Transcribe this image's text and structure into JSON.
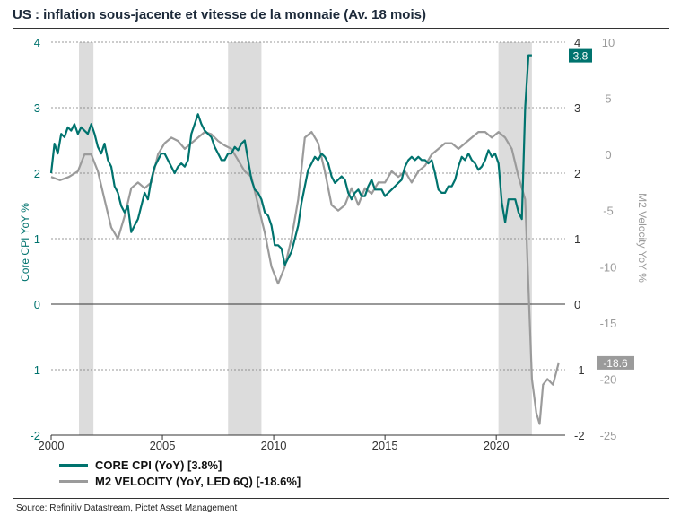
{
  "title": "US : inflation sous-jacente et vitesse de la monnaie (Av. 18 mois)",
  "source": "Source: Refinitiv Datastream, Pictet Asset Management",
  "colors": {
    "core_cpi": "#00736e",
    "m2_velocity": "#9b9b9b",
    "recession": "#dcdcdc",
    "grid": "#555555"
  },
  "legend": [
    {
      "label": "CORE CPI (YoY) [3.8%]",
      "color": "#00736e"
    },
    {
      "label": "M2 VELOCITY (YoY, LED 6Q) [-18.6%]",
      "color": "#9b9b9b"
    }
  ],
  "chart_data": {
    "type": "line",
    "xlim": [
      2000,
      2023.5
    ],
    "x_ticks": [
      2000,
      2005,
      2010,
      2015,
      2020
    ],
    "x_tick_labels": [
      "2000",
      "2005",
      "2010",
      "2015",
      "2020"
    ],
    "y_left": {
      "label": "Core CPI YoY %",
      "lim": [
        -2,
        4
      ],
      "ticks": [
        4,
        3,
        2,
        1,
        0,
        -1,
        -2
      ],
      "tick_labels": [
        "4",
        "3",
        "2",
        "1",
        "0",
        "-1",
        "-2"
      ]
    },
    "y_mid": {
      "lim": [
        -2,
        4
      ],
      "ticks": [
        4,
        3,
        2,
        1,
        0,
        -1,
        -2
      ],
      "tick_labels": [
        "4",
        "3",
        "2",
        "1",
        "0",
        "-1",
        "-2"
      ]
    },
    "y_right": {
      "label": "M2 Velocity YoY %",
      "lim": [
        -25,
        10
      ],
      "ticks": [
        10,
        5,
        0,
        -5,
        -10,
        -15,
        -20,
        -25
      ],
      "tick_labels": [
        "10",
        "5",
        "0",
        "-5",
        "-10",
        "-15",
        "-20",
        "-25"
      ]
    },
    "grid": true,
    "recessions": [
      [
        2001.25,
        2001.9
      ],
      [
        2007.95,
        2009.45
      ],
      [
        2020.1,
        2021.6
      ]
    ],
    "end_labels": [
      {
        "series": "core",
        "text": "3.8"
      },
      {
        "series": "m2",
        "text": "-18.6"
      }
    ],
    "series": [
      {
        "name": "CORE CPI (YoY) [3.8%]",
        "axis": "left",
        "x": [
          2000.0,
          2000.15,
          2000.3,
          2000.45,
          2000.6,
          2000.75,
          2000.9,
          2001.05,
          2001.2,
          2001.35,
          2001.5,
          2001.65,
          2001.8,
          2001.95,
          2002.1,
          2002.25,
          2002.4,
          2002.55,
          2002.7,
          2002.85,
          2003.0,
          2003.15,
          2003.3,
          2003.45,
          2003.6,
          2003.75,
          2003.9,
          2004.05,
          2004.2,
          2004.35,
          2004.5,
          2004.65,
          2004.8,
          2004.95,
          2005.1,
          2005.25,
          2005.4,
          2005.55,
          2005.7,
          2005.85,
          2006.0,
          2006.15,
          2006.3,
          2006.45,
          2006.6,
          2006.75,
          2006.9,
          2007.05,
          2007.2,
          2007.35,
          2007.5,
          2007.65,
          2007.8,
          2007.95,
          2008.1,
          2008.25,
          2008.4,
          2008.55,
          2008.7,
          2008.85,
          2009.0,
          2009.15,
          2009.3,
          2009.45,
          2009.6,
          2009.75,
          2009.9,
          2010.05,
          2010.2,
          2010.35,
          2010.5,
          2010.65,
          2010.8,
          2010.95,
          2011.1,
          2011.25,
          2011.4,
          2011.55,
          2011.7,
          2011.85,
          2012.0,
          2012.15,
          2012.3,
          2012.45,
          2012.6,
          2012.75,
          2012.9,
          2013.05,
          2013.2,
          2013.35,
          2013.5,
          2013.65,
          2013.8,
          2013.95,
          2014.1,
          2014.25,
          2014.4,
          2014.55,
          2014.7,
          2014.85,
          2015.0,
          2015.15,
          2015.3,
          2015.45,
          2015.6,
          2015.75,
          2015.9,
          2016.05,
          2016.2,
          2016.35,
          2016.5,
          2016.65,
          2016.8,
          2016.95,
          2017.1,
          2017.25,
          2017.4,
          2017.55,
          2017.7,
          2017.85,
          2018.0,
          2018.15,
          2018.3,
          2018.45,
          2018.6,
          2018.75,
          2018.9,
          2019.05,
          2019.2,
          2019.35,
          2019.5,
          2019.65,
          2019.8,
          2019.95,
          2020.1,
          2020.25,
          2020.4,
          2020.55,
          2020.7,
          2020.85,
          2021.0,
          2021.15,
          2021.3,
          2021.45,
          2021.6
        ],
        "values": [
          2.0,
          2.45,
          2.3,
          2.6,
          2.55,
          2.7,
          2.65,
          2.75,
          2.6,
          2.7,
          2.65,
          2.6,
          2.75,
          2.6,
          2.4,
          2.3,
          2.45,
          2.2,
          2.1,
          1.8,
          1.7,
          1.5,
          1.4,
          1.5,
          1.1,
          1.2,
          1.3,
          1.5,
          1.7,
          1.6,
          1.9,
          2.1,
          2.2,
          2.3,
          2.3,
          2.2,
          2.1,
          2.0,
          2.1,
          2.15,
          2.1,
          2.2,
          2.6,
          2.75,
          2.9,
          2.75,
          2.65,
          2.6,
          2.55,
          2.4,
          2.3,
          2.2,
          2.2,
          2.3,
          2.3,
          2.4,
          2.35,
          2.45,
          2.5,
          2.2,
          1.9,
          1.75,
          1.7,
          1.6,
          1.4,
          1.35,
          1.2,
          0.9,
          0.9,
          0.85,
          0.6,
          0.7,
          0.8,
          1.0,
          1.2,
          1.55,
          1.8,
          2.05,
          2.15,
          2.25,
          2.2,
          2.3,
          2.25,
          2.15,
          1.95,
          1.85,
          1.9,
          1.95,
          1.9,
          1.7,
          1.6,
          1.7,
          1.75,
          1.65,
          1.65,
          1.8,
          1.9,
          1.75,
          1.75,
          1.75,
          1.65,
          1.7,
          1.75,
          1.8,
          1.85,
          1.9,
          2.1,
          2.2,
          2.25,
          2.2,
          2.25,
          2.2,
          2.2,
          2.15,
          2.2,
          2.0,
          1.75,
          1.7,
          1.7,
          1.8,
          1.8,
          1.9,
          2.1,
          2.25,
          2.2,
          2.3,
          2.2,
          2.15,
          2.05,
          2.1,
          2.2,
          2.35,
          2.25,
          2.3,
          2.15,
          1.55,
          1.25,
          1.6,
          1.6,
          1.6,
          1.4,
          1.3,
          3.0,
          3.8,
          3.8
        ]
      },
      {
        "name": "M2 VELOCITY (YoY, LED 6Q) [-18.6%]",
        "axis": "right",
        "x": [
          2000.0,
          2000.4,
          2000.8,
          2001.2,
          2001.5,
          2001.8,
          2002.1,
          2002.4,
          2002.7,
          2003.0,
          2003.3,
          2003.6,
          2003.9,
          2004.2,
          2004.5,
          2004.8,
          2005.1,
          2005.4,
          2005.7,
          2006.0,
          2006.3,
          2006.6,
          2006.9,
          2007.2,
          2007.5,
          2007.8,
          2008.1,
          2008.4,
          2008.7,
          2009.0,
          2009.3,
          2009.6,
          2009.9,
          2010.2,
          2010.5,
          2010.8,
          2011.1,
          2011.4,
          2011.7,
          2012.0,
          2012.3,
          2012.6,
          2012.9,
          2013.2,
          2013.5,
          2013.8,
          2014.1,
          2014.4,
          2014.7,
          2015.0,
          2015.3,
          2015.6,
          2015.9,
          2016.2,
          2016.5,
          2016.8,
          2017.1,
          2017.4,
          2017.7,
          2018.0,
          2018.3,
          2018.6,
          2018.9,
          2019.2,
          2019.5,
          2019.8,
          2020.1,
          2020.4,
          2020.7,
          2021.0,
          2021.3,
          2021.6,
          2021.8,
          2021.95,
          2022.1,
          2022.3,
          2022.55,
          2022.8
        ],
        "values": [
          -2.0,
          -2.3,
          -2.0,
          -1.5,
          0.0,
          0.0,
          -1.5,
          -4.0,
          -6.5,
          -7.5,
          -5.5,
          -3.0,
          -2.5,
          -3.0,
          -2.5,
          0.0,
          1.0,
          1.5,
          1.2,
          0.5,
          1.0,
          1.5,
          2.0,
          1.8,
          1.2,
          0.8,
          0.5,
          -0.5,
          -1.5,
          -2.0,
          -4.5,
          -7.0,
          -10.0,
          -11.5,
          -10.0,
          -7.5,
          -4.0,
          1.5,
          2.0,
          1.0,
          -1.5,
          -4.5,
          -5.0,
          -4.5,
          -3.0,
          -4.5,
          -3.0,
          -3.5,
          -2.5,
          -2.5,
          -1.5,
          -2.0,
          -1.5,
          -2.5,
          -1.5,
          -1.0,
          0.0,
          0.5,
          1.0,
          1.0,
          0.5,
          1.0,
          1.5,
          2.0,
          2.0,
          1.5,
          2.0,
          1.5,
          0.5,
          -2.0,
          -4.0,
          -20.0,
          -23.0,
          -24.0,
          -20.5,
          -20.0,
          -20.5,
          -18.6
        ]
      }
    ]
  }
}
